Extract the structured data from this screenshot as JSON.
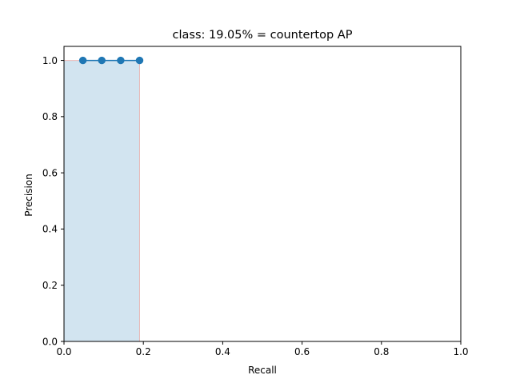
{
  "chart_data": {
    "type": "line",
    "title": "class: 19.05% = countertop AP",
    "xlabel": "Recall",
    "ylabel": "Precision",
    "xlim": [
      0.0,
      1.0
    ],
    "ylim": [
      0.0,
      1.05
    ],
    "xticks": [
      0.0,
      0.2,
      0.4,
      0.6,
      0.8,
      1.0
    ],
    "yticks": [
      0.0,
      0.2,
      0.4,
      0.6,
      0.8,
      1.0
    ],
    "grid": false,
    "series": [
      {
        "x": [
          0.0476,
          0.0952,
          0.1429,
          0.1905
        ],
        "y": [
          1.0,
          1.0,
          1.0,
          1.0
        ],
        "color": "#1f77b4",
        "marker": "circle"
      }
    ],
    "fill_area": {
      "x": [
        0.0,
        0.0476,
        0.0952,
        0.1429,
        0.1905,
        0.1905
      ],
      "y": [
        1.0,
        1.0,
        1.0,
        1.0,
        1.0,
        0.0
      ],
      "fill_color": "#1f77b4",
      "fill_opacity": 0.2,
      "edge_color": "#e74c3c"
    },
    "ap_percent": 19.05
  }
}
